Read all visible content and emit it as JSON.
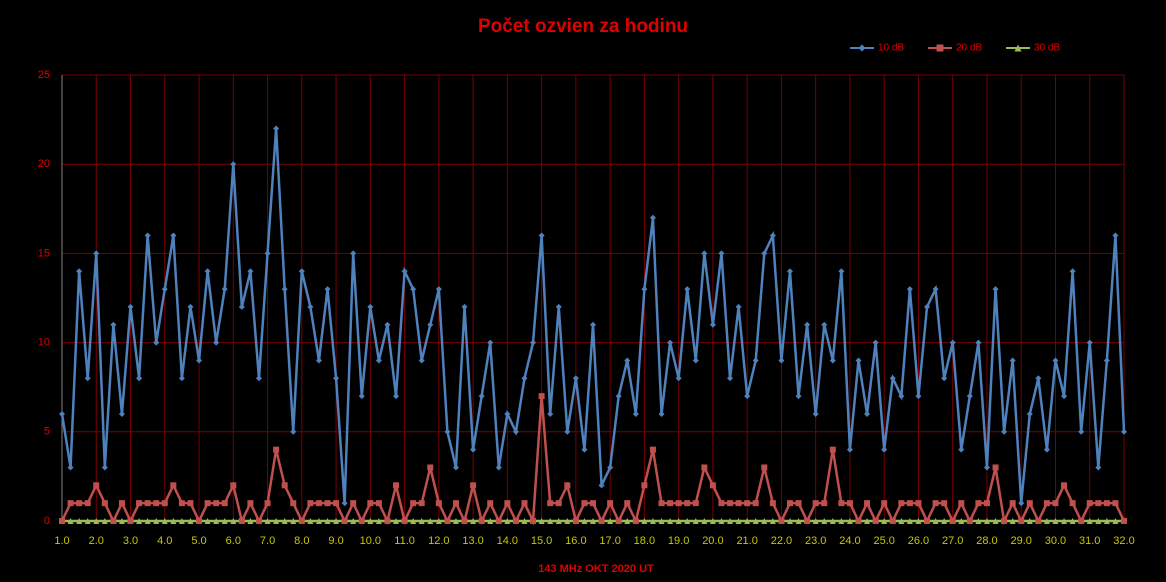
{
  "chart_data": {
    "type": "line",
    "title": "Počet ozvien za hodinu",
    "x_label": "143 MHz OKT  2020  UT",
    "x": [
      1,
      1.25,
      1.5,
      1.75,
      2,
      2.25,
      2.5,
      2.75,
      3,
      3.25,
      3.5,
      3.75,
      4,
      4.25,
      4.5,
      4.75,
      5,
      5.25,
      5.5,
      5.75,
      6,
      6.25,
      6.5,
      6.75,
      7,
      7.25,
      7.5,
      7.75,
      8,
      8.25,
      8.5,
      8.75,
      9,
      9.25,
      9.5,
      9.75,
      10,
      10.25,
      10.5,
      10.75,
      11,
      11.25,
      11.5,
      11.75,
      12,
      12.25,
      12.5,
      12.75,
      13,
      13.25,
      13.5,
      13.75,
      14,
      14.25,
      14.5,
      14.75,
      15,
      15.25,
      15.5,
      15.75,
      16,
      16.25,
      16.5,
      16.75,
      17,
      17.25,
      17.5,
      17.75,
      18,
      18.25,
      18.5,
      18.75,
      19,
      19.25,
      19.5,
      19.75,
      20,
      20.25,
      20.5,
      20.75,
      21,
      21.25,
      21.5,
      21.75,
      22,
      22.25,
      22.5,
      22.75,
      23,
      23.25,
      23.5,
      23.75,
      24,
      24.25,
      24.5,
      24.75,
      25,
      25.25,
      25.5,
      25.75,
      26,
      26.25,
      26.5,
      26.75,
      27,
      27.25,
      27.5,
      27.75,
      28,
      28.25,
      28.5,
      28.75,
      29,
      29.25,
      29.5,
      29.75,
      30,
      30.25,
      30.5,
      30.75,
      31,
      31.25,
      31.5,
      31.75,
      32
    ],
    "series": [
      {
        "name": "10 dB",
        "color": "#4f81bd",
        "marker": "diamond",
        "values": [
          6,
          3,
          14,
          8,
          15,
          3,
          11,
          6,
          12,
          8,
          16,
          10,
          13,
          16,
          8,
          12,
          9,
          14,
          10,
          13,
          20,
          12,
          14,
          8,
          15,
          22,
          13,
          5,
          14,
          12,
          9,
          13,
          8,
          1,
          15,
          7,
          12,
          9,
          11,
          7,
          14,
          13,
          9,
          11,
          13,
          5,
          3,
          12,
          4,
          7,
          10,
          3,
          6,
          5,
          8,
          10,
          16,
          6,
          12,
          5,
          8,
          4,
          11,
          2,
          3,
          7,
          9,
          6,
          13,
          17,
          6,
          10,
          8,
          13,
          9,
          15,
          11,
          15,
          8,
          12,
          7,
          9,
          15,
          16,
          9,
          14,
          7,
          11,
          6,
          11,
          9,
          14,
          4,
          9,
          6,
          10,
          4,
          8,
          7,
          13,
          7,
          12,
          13,
          8,
          10,
          4,
          7,
          10,
          3,
          13,
          5,
          9,
          1,
          6,
          8,
          4,
          9,
          7,
          14,
          5,
          10,
          3,
          9,
          16,
          5
        ]
      },
      {
        "name": "20 dB",
        "color": "#c0504d",
        "marker": "square",
        "values": [
          0,
          1,
          1,
          1,
          2,
          1,
          0,
          1,
          0,
          1,
          1,
          1,
          1,
          2,
          1,
          1,
          0,
          1,
          1,
          1,
          2,
          0,
          1,
          0,
          1,
          4,
          2,
          1,
          0,
          1,
          1,
          1,
          1,
          0,
          1,
          0,
          1,
          1,
          0,
          2,
          0,
          1,
          1,
          3,
          1,
          0,
          1,
          0,
          2,
          0,
          1,
          0,
          1,
          0,
          1,
          0,
          7,
          1,
          1,
          2,
          0,
          1,
          1,
          0,
          1,
          0,
          1,
          0,
          2,
          4,
          1,
          1,
          1,
          1,
          1,
          3,
          2,
          1,
          1,
          1,
          1,
          1,
          3,
          1,
          0,
          1,
          1,
          0,
          1,
          1,
          4,
          1,
          1,
          0,
          1,
          0,
          1,
          0,
          1,
          1,
          1,
          0,
          1,
          1,
          0,
          1,
          0,
          1,
          1,
          3,
          0,
          1,
          0,
          1,
          0,
          1,
          1,
          2,
          1,
          0,
          1,
          1,
          1,
          1,
          0
        ]
      },
      {
        "name": "30 dB",
        "color": "#9bbb59",
        "marker": "triangle",
        "values": [
          0,
          0,
          0,
          0,
          0,
          0,
          0,
          0,
          0,
          0,
          0,
          0,
          0,
          0,
          0,
          0,
          0,
          0,
          0,
          0,
          0,
          0,
          0,
          0,
          0,
          0,
          0,
          0,
          0,
          0,
          0,
          0,
          0,
          0,
          0,
          0,
          0,
          0,
          0,
          0,
          0,
          0,
          0,
          0,
          0,
          0,
          0,
          0,
          0,
          0,
          0,
          0,
          0,
          0,
          0,
          0,
          0,
          0,
          0,
          0,
          0,
          0,
          0,
          0,
          0,
          0,
          0,
          0,
          0,
          0,
          0,
          0,
          0,
          0,
          0,
          0,
          0,
          0,
          0,
          0,
          0,
          0,
          0,
          0,
          0,
          0,
          0,
          0,
          0,
          0,
          0,
          0,
          0,
          0,
          0,
          0,
          0,
          0,
          0,
          0,
          0,
          0,
          0,
          0,
          0,
          0,
          0,
          0,
          0,
          0,
          0,
          0,
          0,
          0,
          0,
          0,
          0,
          0,
          0,
          0,
          0,
          0,
          0,
          0,
          0
        ]
      }
    ],
    "xlim": [
      1,
      32
    ],
    "ylim": [
      0,
      25
    ],
    "yticks": [
      0,
      5,
      10,
      15,
      20,
      25
    ],
    "xticks": [
      {
        "value": 1,
        "label": "1.0"
      },
      {
        "value": 2,
        "label": "2.0"
      },
      {
        "value": 3,
        "label": "3.0"
      },
      {
        "value": 4,
        "label": "4.0"
      },
      {
        "value": 5,
        "label": "5.0"
      },
      {
        "value": 6,
        "label": "6.0"
      },
      {
        "value": 7,
        "label": "7.0"
      },
      {
        "value": 8,
        "label": "8.0"
      },
      {
        "value": 9,
        "label": "9.0"
      },
      {
        "value": 10,
        "label": "10.0"
      },
      {
        "value": 11,
        "label": "11.0"
      },
      {
        "value": 12,
        "label": "12.0"
      },
      {
        "value": 13,
        "label": "13.0"
      },
      {
        "value": 14,
        "label": "14.0"
      },
      {
        "value": 15,
        "label": "15.0"
      },
      {
        "value": 16,
        "label": "16.0"
      },
      {
        "value": 17,
        "label": "17.0"
      },
      {
        "value": 18,
        "label": "18.0"
      },
      {
        "value": 19,
        "label": "19.0"
      },
      {
        "value": 20,
        "label": "20.0"
      },
      {
        "value": 21,
        "label": "21.0"
      },
      {
        "value": 22,
        "label": "22.0"
      },
      {
        "value": 23,
        "label": "23.0"
      },
      {
        "value": 24,
        "label": "24.0"
      },
      {
        "value": 25,
        "label": "25.0"
      },
      {
        "value": 26,
        "label": "26.0"
      },
      {
        "value": 27,
        "label": "27.0"
      },
      {
        "value": 28,
        "label": "28.0"
      },
      {
        "value": 29,
        "label": "29.0"
      },
      {
        "value": 30,
        "label": "30.0"
      },
      {
        "value": 31,
        "label": "31.0"
      },
      {
        "value": 32,
        "label": "32.0"
      }
    ],
    "grid": true,
    "legend": "top-right"
  }
}
